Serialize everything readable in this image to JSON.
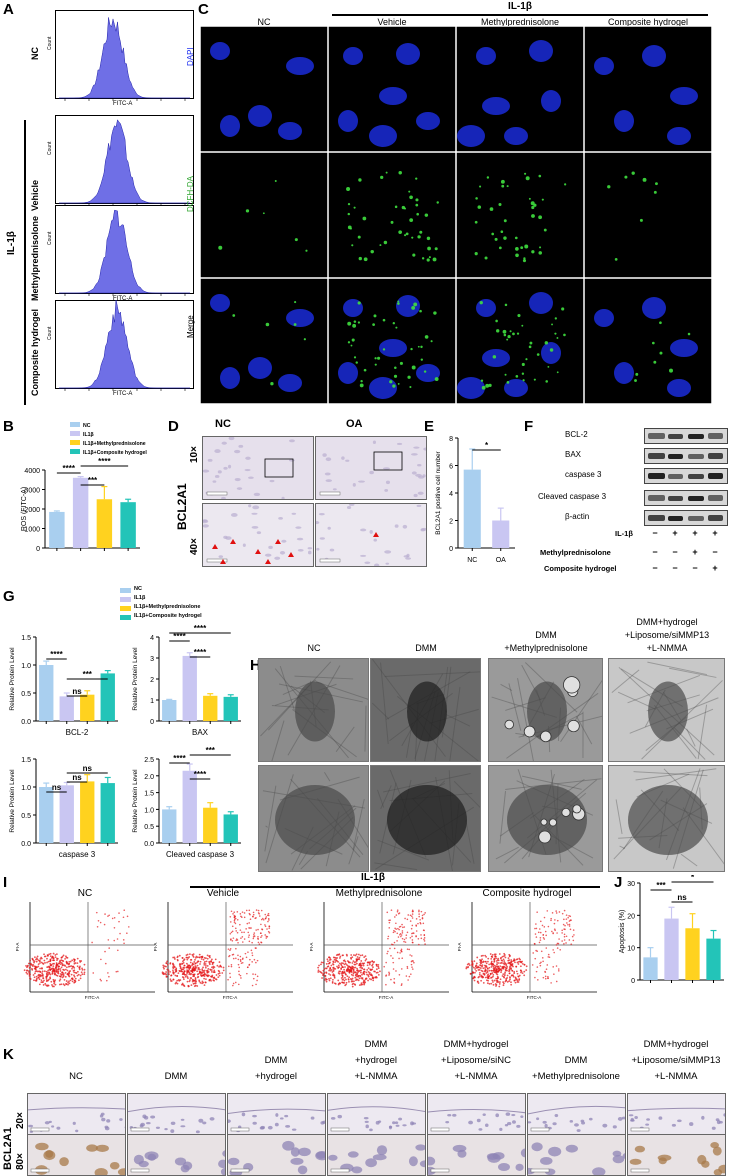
{
  "panels": {
    "A": "A",
    "B": "B",
    "C": "C",
    "D": "D",
    "E": "E",
    "F": "F",
    "G": "G",
    "H": "H",
    "I": "I",
    "J": "J",
    "K": "K"
  },
  "colors": {
    "nc": "#a9cfef",
    "il1b": "#c9c6f2",
    "methyl": "#ffd21f",
    "hydrogel": "#23c4b8",
    "dapi": "#1b2cf0",
    "dcfh": "#2ea52e",
    "flow": "#e41a1c",
    "histogram": "#6f6fe6"
  },
  "panelA": {
    "group_label": "IL-1β",
    "rows": [
      {
        "label": "NC",
        "ylabel": "Count",
        "xlabel": "FITC-A"
      },
      {
        "label": "Vehicle",
        "ylabel": "Count",
        "xlabel": "FITC-A"
      },
      {
        "label": "Methylprednisolone",
        "ylabel": "Count",
        "xlabel": "FITC-A"
      },
      {
        "label": "Composite hydrogel",
        "ylabel": "Count",
        "xlabel": "FITC-A"
      }
    ]
  },
  "panelC": {
    "group_label": "IL-1β",
    "cols": [
      "NC",
      "Vehicle",
      "Methylprednisolone",
      "Composite hydrogel"
    ],
    "rows": [
      "DAPI",
      "DCFH-DA",
      "Merge"
    ]
  },
  "panelB": {
    "legend": [
      "NC",
      "IL1β",
      "IL1β+Methylprednisolone",
      "IL1β+Composite hydrogel"
    ],
    "ylabel": "ROS (FITC-A)",
    "yticks": [
      "4000",
      "3000",
      "2000",
      "1000",
      "0"
    ],
    "sig": [
      "****",
      "***",
      "****"
    ]
  },
  "panelD": {
    "cols": [
      "NC",
      "OA"
    ],
    "protein": "BCL2A1",
    "mags": [
      "10×",
      "40×"
    ]
  },
  "panelE": {
    "ylabel": "BCL2A1 positive cell number",
    "yticks": [
      "8",
      "6",
      "4",
      "2",
      "0"
    ],
    "xticks": [
      "NC",
      "OA"
    ],
    "sig": "*"
  },
  "panelF": {
    "bands": [
      "BCL-2",
      "BAX",
      "caspase 3",
      "Cleaved caspase 3",
      "β-actin"
    ],
    "treat_rows": [
      {
        "label": "IL-1β",
        "marks": [
          "−",
          "+",
          "+",
          "+"
        ]
      },
      {
        "label": "Methylprednisolone",
        "marks": [
          "−",
          "−",
          "+",
          "−"
        ]
      },
      {
        "label": "Composite hydrogel",
        "marks": [
          "−",
          "−",
          "−",
          "+"
        ]
      }
    ]
  },
  "panelG": {
    "legend": [
      "NC",
      "IL1β",
      "IL1β+Methylprednisolone",
      "IL1β+Composite hydrogel"
    ],
    "ylabel": "Relative Protein Level",
    "charts": [
      {
        "name": "BCL-2",
        "yticks": [
          "1.5",
          "1.0",
          "0.5",
          "0.0"
        ],
        "sig": [
          "****",
          "ns",
          "***"
        ]
      },
      {
        "name": "BAX",
        "yticks": [
          "4",
          "3",
          "2",
          "1",
          "0"
        ],
        "sig": [
          "****",
          "****",
          "****"
        ]
      },
      {
        "name": "caspase 3",
        "yticks": [
          "1.5",
          "1.0",
          "0.5",
          "0.0"
        ],
        "sig": [
          "ns",
          "ns",
          "ns"
        ]
      },
      {
        "name": "Cleaved caspase 3",
        "yticks": [
          "2.5",
          "2.0",
          "1.5",
          "1.0",
          "0.5",
          "0.0"
        ],
        "sig": [
          "****",
          "****",
          "***"
        ]
      }
    ]
  },
  "panelH": {
    "cols": [
      "NC",
      "DMM",
      "DMM\n+Methylprednisolone",
      "DMM+hydrogel\n+Liposome/siMMP13\n+L-NMMA"
    ]
  },
  "panelI": {
    "group_label": "IL-1β",
    "cols": [
      "NC",
      "Vehicle",
      "Methylprednisolone",
      "Composite hydrogel"
    ],
    "xlabel": "FITC-A",
    "ylabel": "PI-A"
  },
  "panelJ": {
    "ylabel": "Apoptosis (%)",
    "yticks": [
      "30",
      "20",
      "10",
      "0"
    ],
    "sig": [
      "***",
      "ns",
      "*"
    ]
  },
  "panelK": {
    "protein": "BCL2A1",
    "mags": [
      "20×",
      "80×"
    ],
    "cols": [
      "NC",
      "DMM",
      "DMM\n+hydrogel",
      "DMM\n+hydrogel\n+L-NMMA",
      "DMM+hydrogel\n+Liposome/siNC\n+L-NMMA",
      "DMM\n+Methylprednisolone",
      "DMM+hydrogel\n+Liposome/siMMP13\n+L-NMMA"
    ]
  },
  "chart_data": [
    {
      "type": "bar",
      "title": "",
      "ylabel": "ROS (FITC-A)",
      "categories": [
        "NC",
        "IL1β",
        "IL1β+Methylprednisolone",
        "IL1β+Composite hydrogel"
      ],
      "values": [
        1850,
        3600,
        2500,
        2350
      ],
      "errors": [
        50,
        60,
        650,
        150
      ],
      "ylim": [
        0,
        4000
      ]
    },
    {
      "type": "bar",
      "ylabel": "BCL2A1 positive cell number",
      "categories": [
        "NC",
        "OA"
      ],
      "values": [
        5.7,
        2.0
      ],
      "errors": [
        1.5,
        0.9
      ],
      "ylim": [
        0,
        8
      ]
    },
    {
      "type": "bar",
      "xlabel": "BCL-2",
      "ylabel": "Relative Protein Level",
      "categories": [
        "NC",
        "IL1β",
        "IL1β+Methylprednisolone",
        "IL1β+Composite hydrogel"
      ],
      "values": [
        1.0,
        0.44,
        0.47,
        0.85
      ],
      "errors": [
        0.07,
        0.06,
        0.07,
        0.05
      ],
      "ylim": [
        0,
        1.5
      ]
    },
    {
      "type": "bar",
      "xlabel": "BAX",
      "ylabel": "Relative Protein Level",
      "categories": [
        "NC",
        "IL1β",
        "IL1β+Methylprednisolone",
        "IL1β+Composite hydrogel"
      ],
      "values": [
        1.0,
        3.1,
        1.2,
        1.15
      ],
      "errors": [
        0.03,
        0.15,
        0.1,
        0.1
      ],
      "ylim": [
        0,
        4
      ]
    },
    {
      "type": "bar",
      "xlabel": "caspase 3",
      "ylabel": "Relative Protein Level",
      "categories": [
        "NC",
        "IL1β",
        "IL1β+Methylprednisolone",
        "IL1β+Composite hydrogel"
      ],
      "values": [
        1.0,
        1.03,
        1.1,
        1.07
      ],
      "errors": [
        0.07,
        0.05,
        0.12,
        0.1
      ],
      "ylim": [
        0,
        1.5
      ]
    },
    {
      "type": "bar",
      "xlabel": "Cleaved caspase 3",
      "ylabel": "Relative Protein Level",
      "categories": [
        "NC",
        "IL1β",
        "IL1β+Methylprednisolone",
        "IL1β+Composite hydrogel"
      ],
      "values": [
        1.0,
        2.15,
        1.05,
        0.85
      ],
      "errors": [
        0.08,
        0.2,
        0.15,
        0.08
      ],
      "ylim": [
        0,
        2.5
      ]
    },
    {
      "type": "bar",
      "ylabel": "Apoptosis (%)",
      "categories": [
        "NC",
        "IL1β",
        "IL1β+Methylprednisolone",
        "IL1β+Composite hydrogel"
      ],
      "values": [
        7,
        19,
        16,
        12.8
      ],
      "errors": [
        3,
        3.5,
        4.5,
        2.5
      ],
      "ylim": [
        0,
        30
      ]
    }
  ]
}
